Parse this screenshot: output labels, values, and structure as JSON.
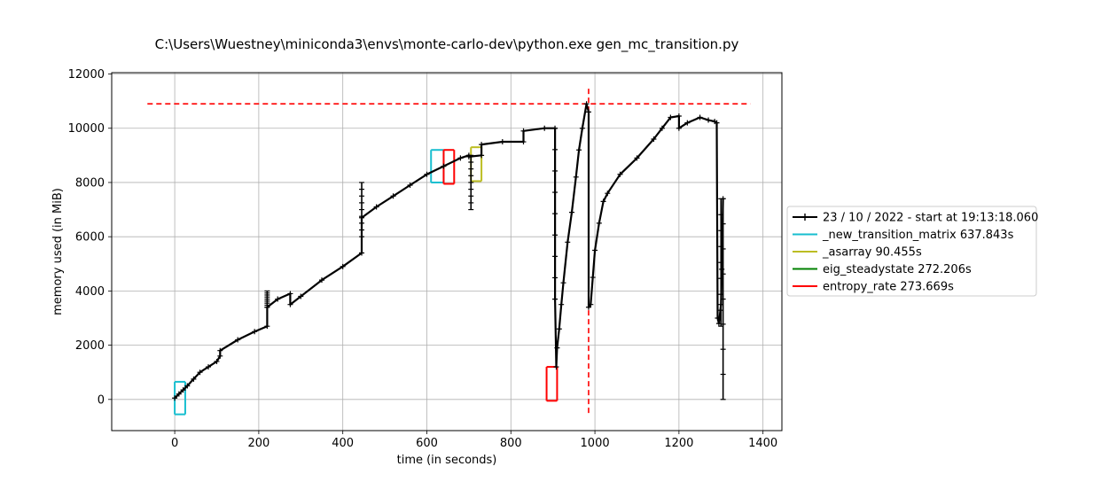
{
  "chart_data": {
    "type": "line",
    "title": "C:\\Users\\Wuestney\\miniconda3\\envs\\monte-carlo-dev\\python.exe gen_mc_transition.py",
    "xlabel": "time (in seconds)",
    "ylabel": "memory used (in MiB)",
    "xlim": [
      -150,
      1445
    ],
    "ylim": [
      -1150,
      12050
    ],
    "xticks": [
      0,
      200,
      400,
      600,
      800,
      1000,
      1200,
      1400
    ],
    "yticks": [
      0,
      2000,
      4000,
      6000,
      8000,
      10000,
      12000
    ],
    "grid": true,
    "legend_position": "right-outside",
    "colors": {
      "memory": "#000000",
      "new_transition_matrix": "#17becf",
      "asarray": "#bcbd22",
      "eig_steadystate": "#008000",
      "entropy_rate": "#ff0000"
    },
    "series": [
      {
        "name": "23 / 10 / 2022 - start at 19:13:18.060",
        "x": [
          0,
          10,
          20,
          30,
          45,
          60,
          80,
          100,
          108,
          108,
          150,
          190,
          220,
          220,
          245,
          275,
          275,
          300,
          350,
          400,
          445,
          445,
          480,
          520,
          560,
          600,
          640,
          680,
          700,
          700,
          730,
          730,
          780,
          830,
          830,
          880,
          905,
          905,
          908,
          910,
          915,
          920,
          925,
          935,
          945,
          955,
          962,
          970,
          980,
          985,
          985,
          990,
          995,
          1000,
          1010,
          1020,
          1030,
          1060,
          1100,
          1140,
          1160,
          1180,
          1200,
          1200,
          1220,
          1250,
          1270,
          1285,
          1290,
          1292,
          1295,
          1300,
          1302,
          1305
        ],
        "y": [
          50,
          200,
          350,
          500,
          750,
          1000,
          1200,
          1400,
          1600,
          1800,
          2200,
          2500,
          2700,
          3400,
          3700,
          3900,
          3500,
          3800,
          4400,
          4900,
          5400,
          6700,
          7100,
          7500,
          7900,
          8300,
          8600,
          8900,
          9000,
          8950,
          9000,
          9400,
          9500,
          9500,
          9900,
          10000,
          10000,
          3700,
          1200,
          1900,
          2600,
          3500,
          4300,
          5800,
          6900,
          8200,
          9200,
          10000,
          10900,
          10600,
          3400,
          3500,
          4500,
          5500,
          6500,
          7300,
          7600,
          8300,
          8900,
          9600,
          10000,
          10400,
          10450,
          10000,
          10200,
          10400,
          10300,
          10250,
          10200,
          3000,
          2800,
          3500,
          4800,
          7400
        ]
      }
    ],
    "spikes": [
      {
        "x": 220,
        "y_min": 3400,
        "y_max": 4000
      },
      {
        "x": 445,
        "y_min": 6000,
        "y_max": 8000
      },
      {
        "x": 705,
        "y_min": 7000,
        "y_max": 9000
      },
      {
        "x": 905,
        "y_min": 3700,
        "y_max": 10000
      },
      {
        "x": 1300,
        "y_min": 2700,
        "y_max": 7400
      },
      {
        "x": 1305,
        "y_min": 0,
        "y_max": 7400
      }
    ],
    "intervals": [
      {
        "name": "_new_transition_matrix 637.843s",
        "key": "new_transition_matrix",
        "spans": [
          {
            "start": 0,
            "end": 25,
            "y_start": -550,
            "y_end": 650
          },
          {
            "start": 610,
            "end": 640,
            "y_start": 8000,
            "y_end": 9200
          }
        ]
      },
      {
        "name": "_asarray 90.455s",
        "key": "asarray",
        "spans": [
          {
            "start": 705,
            "end": 730,
            "y_start": 8050,
            "y_end": 9300
          }
        ]
      },
      {
        "name": "eig_steadystate 272.206s",
        "key": "eig_steadystate",
        "spans": []
      },
      {
        "name": "entropy_rate 273.669s",
        "key": "entropy_rate",
        "spans": [
          {
            "start": 640,
            "end": 665,
            "y_start": 7950,
            "y_end": 9200
          },
          {
            "start": 885,
            "end": 910,
            "y_start": -50,
            "y_end": 1200
          }
        ]
      }
    ],
    "reference_lines": [
      {
        "orientation": "horizontal",
        "value": 10900,
        "from": -65,
        "to": 1370,
        "color": "#ff0000",
        "dashed": true
      },
      {
        "orientation": "vertical",
        "value": 985,
        "from": -500,
        "to": 11500,
        "color": "#ff0000",
        "dashed": true
      }
    ]
  }
}
